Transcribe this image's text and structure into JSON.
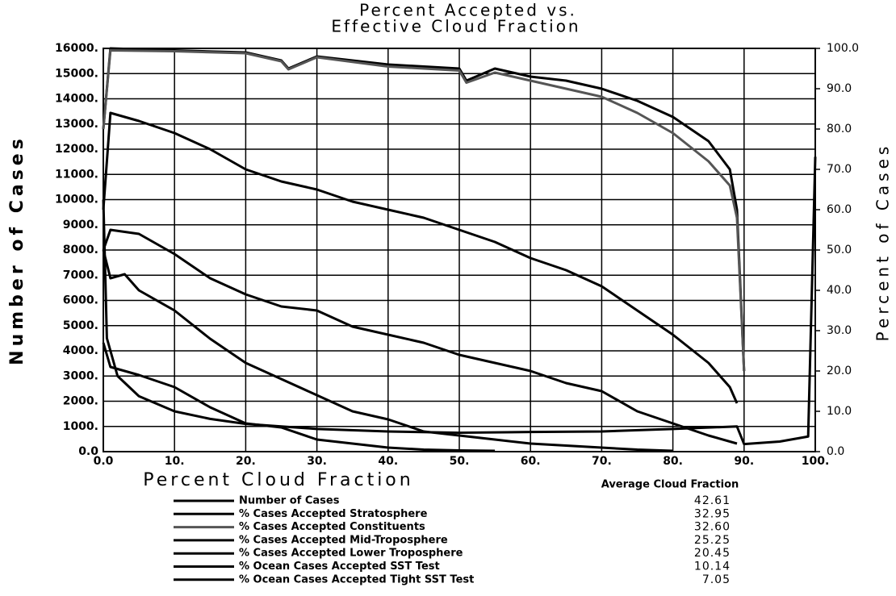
{
  "chart_data": {
    "type": "line",
    "title": [
      "Percent Accepted vs.",
      "Effective Cloud Fraction"
    ],
    "x_label": "Percent Cloud Fraction",
    "y_label": "Number of Cases",
    "y2_label": "Percent of Cases",
    "legend_value_header": "Average Cloud Fraction",
    "grid": true,
    "xlim": [
      0,
      100
    ],
    "xticks": [
      {
        "value": 0,
        "label": "0.0"
      },
      {
        "value": 10,
        "label": "10."
      },
      {
        "value": 20,
        "label": "20."
      },
      {
        "value": 30,
        "label": "30."
      },
      {
        "value": 40,
        "label": "40."
      },
      {
        "value": 50,
        "label": "50."
      },
      {
        "value": 60,
        "label": "60."
      },
      {
        "value": 70,
        "label": "70."
      },
      {
        "value": 80,
        "label": "80."
      },
      {
        "value": 90,
        "label": "90."
      },
      {
        "value": 100,
        "label": "100."
      }
    ],
    "ylim": [
      0,
      16000
    ],
    "yticks": [
      {
        "value": 0,
        "label": "0.0"
      },
      {
        "value": 1000,
        "label": "1000."
      },
      {
        "value": 2000,
        "label": "2000."
      },
      {
        "value": 3000,
        "label": "3000."
      },
      {
        "value": 4000,
        "label": "4000."
      },
      {
        "value": 5000,
        "label": "5000."
      },
      {
        "value": 6000,
        "label": "6000."
      },
      {
        "value": 7000,
        "label": "7000."
      },
      {
        "value": 8000,
        "label": "8000."
      },
      {
        "value": 9000,
        "label": "9000."
      },
      {
        "value": 10000,
        "label": "10000."
      },
      {
        "value": 11000,
        "label": "11000."
      },
      {
        "value": 12000,
        "label": "12000."
      },
      {
        "value": 13000,
        "label": "13000."
      },
      {
        "value": 14000,
        "label": "14000."
      },
      {
        "value": 15000,
        "label": "15000."
      },
      {
        "value": 16000,
        "label": "16000."
      }
    ],
    "y2lim": [
      0,
      100
    ],
    "y2ticks": [
      {
        "value": 0,
        "label": "0.0"
      },
      {
        "value": 10,
        "label": "10.0"
      },
      {
        "value": 20,
        "label": "20.0"
      },
      {
        "value": 30,
        "label": "30.0"
      },
      {
        "value": 40,
        "label": "40.0"
      },
      {
        "value": 50,
        "label": "50.0"
      },
      {
        "value": 60,
        "label": "60.0"
      },
      {
        "value": 70,
        "label": "70.0"
      },
      {
        "value": 80,
        "label": "80.0"
      },
      {
        "value": 90,
        "label": "90.0"
      },
      {
        "value": 100,
        "label": "100.0"
      }
    ],
    "series": [
      {
        "name": "Number of Cases",
        "color": "#000000",
        "average": 42.61,
        "axis": "y",
        "x": [
          0,
          0.5,
          2,
          5,
          10,
          15,
          20,
          30,
          40,
          50,
          60,
          70,
          80,
          89,
          90,
          95,
          99,
          100
        ],
        "values": [
          10000,
          4500,
          3000,
          2200,
          1600,
          1300,
          1100,
          900,
          800,
          750,
          780,
          800,
          900,
          1000,
          300,
          400,
          600,
          11700
        ]
      },
      {
        "name": "% Cases Accepted Stratosphere",
        "color": "#000000",
        "average": 32.95,
        "axis": "y2",
        "x": [
          0,
          1,
          10,
          20,
          25,
          26,
          30,
          40,
          50,
          51,
          55,
          60,
          65,
          70,
          75,
          80,
          85,
          88,
          89,
          90
        ],
        "values": [
          80,
          100,
          99.5,
          99,
          97,
          95,
          98,
          96,
          95,
          92,
          95,
          93,
          92,
          90,
          87,
          83,
          77,
          70,
          60,
          20
        ]
      },
      {
        "name": "% Cases Accepted Constituents",
        "color": "#555555",
        "average": {
          "value": 32.6,
          "label": "32.60"
        },
        "axis": "y2",
        "x": [
          0,
          1,
          10,
          20,
          25,
          26,
          30,
          40,
          50,
          51,
          55,
          60,
          65,
          70,
          75,
          80,
          85,
          88,
          89,
          90
        ],
        "values": [
          80,
          99.5,
          99.3,
          98.8,
          96.8,
          94.8,
          97.8,
          95.5,
          94.5,
          91.5,
          94,
          92,
          90,
          88,
          84,
          79,
          72,
          66,
          58,
          20
        ]
      },
      {
        "name": "% Cases Accepted Mid-Troposphere",
        "color": "#000000",
        "average": 25.25,
        "axis": "y2",
        "x": [
          0,
          1,
          5,
          10,
          15,
          20,
          25,
          30,
          35,
          40,
          45,
          50,
          55,
          60,
          65,
          70,
          75,
          80,
          85,
          88,
          89
        ],
        "values": [
          60,
          84,
          82,
          79,
          75,
          70,
          67,
          65,
          62,
          60,
          58,
          55,
          52,
          48,
          45,
          41,
          35,
          29,
          22,
          16,
          12
        ]
      },
      {
        "name": "% Cases Accepted Lower Troposphere",
        "color": "#000000",
        "average": 20.45,
        "axis": "y2",
        "x": [
          0,
          1,
          5,
          10,
          15,
          20,
          25,
          30,
          35,
          40,
          45,
          50,
          55,
          60,
          65,
          70,
          75,
          80,
          85,
          89
        ],
        "values": [
          50,
          55,
          54,
          49,
          43,
          39,
          36,
          35,
          31,
          29,
          27,
          24,
          22,
          20,
          17,
          15,
          10,
          7,
          4,
          2
        ]
      },
      {
        "name": "% Ocean Cases Accepted SST Test",
        "color": "#000000",
        "average": 10.14,
        "axis": "y2",
        "x": [
          0,
          1,
          3,
          5,
          10,
          15,
          20,
          25,
          30,
          35,
          40,
          45,
          50,
          55,
          60,
          65,
          70,
          75,
          80
        ],
        "values": [
          50,
          43,
          44,
          40,
          35,
          28,
          22,
          18,
          14,
          10,
          8,
          5,
          4,
          3,
          2,
          1.5,
          1,
          0.5,
          0.2
        ]
      },
      {
        "name": "% Ocean Cases Accepted Tight SST Test",
        "color": "#000000",
        "average": 7.05,
        "axis": "y2",
        "x": [
          0,
          1,
          3,
          5,
          10,
          15,
          20,
          25,
          30,
          35,
          40,
          45,
          50,
          55
        ],
        "values": [
          27,
          21,
          20,
          19,
          16,
          11,
          7,
          6,
          3,
          2,
          1,
          0.5,
          0.3,
          0.2
        ]
      }
    ]
  }
}
